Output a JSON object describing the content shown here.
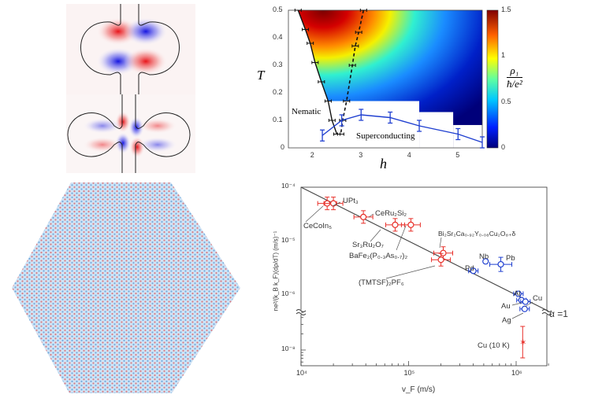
{
  "figure_panels": {
    "top_left": "wavefunction maps",
    "bottom_left": "hexagonal lattice"
  },
  "colors": {
    "red": "#e8302a",
    "blue": "#1f3fd0",
    "lattice_blue": "#7fb7e6",
    "lattice_red": "#e07a7a"
  },
  "chart_data": [
    {
      "type": "heatmap",
      "xlabel": "h",
      "ylabel": "T",
      "xlim": [
        1.5,
        5.5
      ],
      "ylim": [
        0,
        0.5
      ],
      "xticks": [
        "2",
        "3",
        "4",
        "5"
      ],
      "yticks": [
        "0",
        "0.1",
        "0.2",
        "0.3",
        "0.4",
        "0.5"
      ],
      "colorbar": {
        "label_num": "ρ₁",
        "label_den": "ħ/e²",
        "ticks": [
          "0",
          "0.5",
          "1",
          "1.5"
        ],
        "range": [
          0,
          1.5
        ]
      },
      "annotations": [
        "Nematic",
        "Superconducting"
      ],
      "nematic_boundary": [
        [
          1.7,
          0.5
        ],
        [
          1.85,
          0.43
        ],
        [
          1.95,
          0.38
        ],
        [
          2.05,
          0.31
        ],
        [
          2.18,
          0.24
        ],
        [
          2.32,
          0.17
        ],
        [
          2.4,
          0.1
        ],
        [
          2.5,
          0.05
        ]
      ],
      "dashed_boundary": [
        [
          3.05,
          0.5
        ],
        [
          2.95,
          0.42
        ],
        [
          2.88,
          0.37
        ],
        [
          2.82,
          0.3
        ],
        [
          2.7,
          0.17
        ],
        [
          2.62,
          0.1
        ],
        [
          2.58,
          0.05
        ]
      ],
      "superconducting_Tc": {
        "h": [
          2.2,
          2.6,
          3.0,
          3.6,
          4.2,
          5.0,
          5.5
        ],
        "T": [
          0.045,
          0.1,
          0.12,
          0.11,
          0.08,
          0.05,
          0.02
        ],
        "err": [
          0.02,
          0.02,
          0.02,
          0.02,
          0.02,
          0.02,
          0.02
        ]
      },
      "masked_region_steps": [
        [
          1.5,
          4.2,
          0.17
        ],
        [
          4.2,
          4.9,
          0.13
        ],
        [
          4.9,
          5.5,
          0.083
        ]
      ]
    },
    {
      "type": "scatter",
      "xlabel": "v_F (m/s)",
      "ylabel": "ne²/(k_B k_F)(dρ/dT) (m/s)⁻¹",
      "xscale": "log",
      "yscale": "log (broken axis)",
      "xlim": [
        10000,
        2000000
      ],
      "xticks": [
        "10⁴",
        "10⁵",
        "10⁶"
      ],
      "yticks": [
        "10⁻⁴",
        "10⁻⁵",
        "10⁻⁶",
        "10⁻⁸"
      ],
      "line_label": "α =1",
      "line": {
        "x": [
          10000,
          2000000
        ],
        "y": [
          0.0001,
          5e-07
        ]
      },
      "points": [
        {
          "name": "CeCoIn₅",
          "x": 17500,
          "y": 5e-05,
          "group": "red"
        },
        {
          "name": "UPt₃",
          "x": 20000,
          "y": 5e-05,
          "group": "red"
        },
        {
          "name": "CeRu₂Si₂",
          "x": 38000,
          "y": 2.8e-05,
          "group": "red"
        },
        {
          "name": "Sr₃Ru₂O₇",
          "x": 75000,
          "y": 2e-05,
          "group": "red"
        },
        {
          "name": "BaFe₂(P₀.₃As₀.₇)₂",
          "x": 105000,
          "y": 2e-05,
          "group": "red"
        },
        {
          "name": "Bi₂Sr₂Ca₀.₉₂Y₀.₀₈Cu₂O₈₊δ",
          "x": 210000,
          "y": 6e-06,
          "group": "red"
        },
        {
          "name": "(TMTSF)₂PF₆",
          "x": 200000,
          "y": 4.5e-06,
          "group": "red"
        },
        {
          "name": "Pd",
          "x": 400000,
          "y": 2.8e-06,
          "group": "blue"
        },
        {
          "name": "Nb",
          "x": 520000,
          "y": 4.2e-06,
          "group": "blue"
        },
        {
          "name": "Pb",
          "x": 720000,
          "y": 3.7e-06,
          "group": "blue"
        },
        {
          "name": "Al",
          "x": 1050000,
          "y": 1.05e-06,
          "group": "blue"
        },
        {
          "name": "Cu",
          "x": 1120000,
          "y": 8e-07,
          "group": "blue"
        },
        {
          "name": "Au",
          "x": 1220000,
          "y": 7.5e-07,
          "group": "blue"
        },
        {
          "name": "Ag",
          "x": 1200000,
          "y": 5.5e-07,
          "group": "blue"
        },
        {
          "name": "Cu (10 K)",
          "x": 1150000,
          "y": 1.4e-08,
          "group": "red-star"
        }
      ]
    }
  ]
}
